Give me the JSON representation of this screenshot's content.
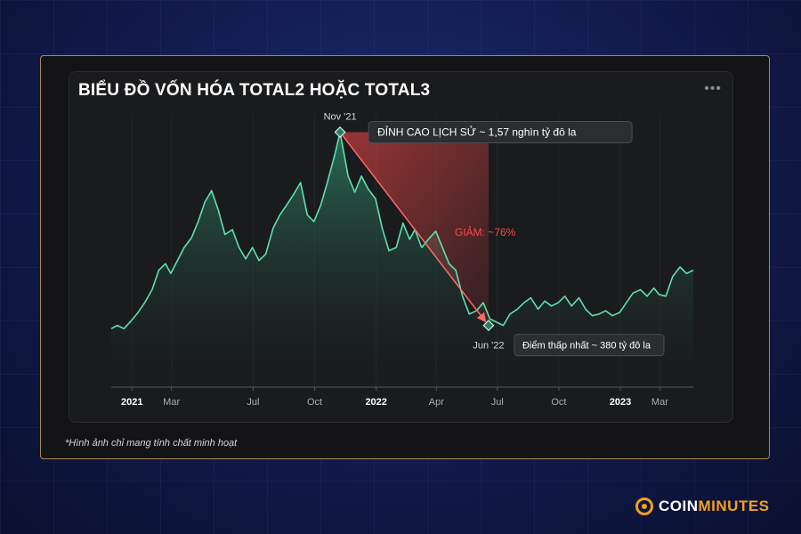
{
  "colors": {
    "line": "#5ee0b0",
    "area_top": "#2f7a62",
    "drop": "#ff5a5a",
    "brand": "#f0a020"
  },
  "card": {
    "title": "BIỂU ĐỒ VỐN HÓA TOTAL2 HOẶC TOTAL3",
    "menu_icon": "more-horizontal-icon"
  },
  "caption": "*Hình ảnh chỉ mang tính chất minh hoạt",
  "logo": {
    "part1": "COIN",
    "part2": "MINUTES",
    "icon": "coin-logo-icon"
  },
  "chart_data": {
    "type": "area",
    "title": "BIỂU ĐỒ VỐN HÓA TOTAL2 HOẶC TOTAL3",
    "xlabel": "",
    "ylabel": "",
    "grid": true,
    "x_ticks": [
      {
        "date": "2021-01-01",
        "label": "2021",
        "bold": true
      },
      {
        "date": "2021-03-01",
        "label": "Mar",
        "bold": false
      },
      {
        "date": "2021-07-01",
        "label": "Jul",
        "bold": false
      },
      {
        "date": "2021-10-01",
        "label": "Oct",
        "bold": false
      },
      {
        "date": "2022-01-01",
        "label": "2022",
        "bold": true
      },
      {
        "date": "2022-04-01",
        "label": "Apr",
        "bold": false
      },
      {
        "date": "2022-07-01",
        "label": "Jul",
        "bold": false
      },
      {
        "date": "2022-10-01",
        "label": "Oct",
        "bold": false
      },
      {
        "date": "2023-01-01",
        "label": "2023",
        "bold": true
      },
      {
        "date": "2023-03-01",
        "label": "Mar",
        "bold": false
      }
    ],
    "x_range": [
      "2020-12-01",
      "2023-04-20"
    ],
    "y_range": [
      0,
      1.6
    ],
    "units": "nghìn tỷ đô la",
    "series": [
      {
        "points": [
          [
            "2020-12-01",
            0.36
          ],
          [
            "2020-12-10",
            0.38
          ],
          [
            "2020-12-20",
            0.36
          ],
          [
            "2020-12-31",
            0.41
          ],
          [
            "2021-01-10",
            0.46
          ],
          [
            "2021-01-20",
            0.52
          ],
          [
            "2021-01-31",
            0.6
          ],
          [
            "2021-02-10",
            0.72
          ],
          [
            "2021-02-20",
            0.76
          ],
          [
            "2021-02-28",
            0.7
          ],
          [
            "2021-03-10",
            0.78
          ],
          [
            "2021-03-20",
            0.86
          ],
          [
            "2021-03-31",
            0.92
          ],
          [
            "2021-04-10",
            1.02
          ],
          [
            "2021-04-20",
            1.14
          ],
          [
            "2021-04-30",
            1.21
          ],
          [
            "2021-05-10",
            1.09
          ],
          [
            "2021-05-20",
            0.94
          ],
          [
            "2021-05-31",
            0.97
          ],
          [
            "2021-06-10",
            0.86
          ],
          [
            "2021-06-20",
            0.79
          ],
          [
            "2021-06-30",
            0.86
          ],
          [
            "2021-07-10",
            0.78
          ],
          [
            "2021-07-20",
            0.82
          ],
          [
            "2021-07-31",
            0.98
          ],
          [
            "2021-08-10",
            1.06
          ],
          [
            "2021-08-20",
            1.12
          ],
          [
            "2021-08-31",
            1.19
          ],
          [
            "2021-09-10",
            1.26
          ],
          [
            "2021-09-20",
            1.06
          ],
          [
            "2021-09-30",
            1.02
          ],
          [
            "2021-10-10",
            1.12
          ],
          [
            "2021-10-20",
            1.26
          ],
          [
            "2021-10-31",
            1.43
          ],
          [
            "2021-11-08",
            1.57
          ],
          [
            "2021-11-20",
            1.3
          ],
          [
            "2021-11-30",
            1.2
          ],
          [
            "2021-12-10",
            1.3
          ],
          [
            "2021-12-20",
            1.22
          ],
          [
            "2021-12-31",
            1.16
          ],
          [
            "2022-01-10",
            0.98
          ],
          [
            "2022-01-20",
            0.84
          ],
          [
            "2022-01-31",
            0.86
          ],
          [
            "2022-02-10",
            1.01
          ],
          [
            "2022-02-20",
            0.91
          ],
          [
            "2022-02-28",
            0.97
          ],
          [
            "2022-03-10",
            0.86
          ],
          [
            "2022-03-20",
            0.91
          ],
          [
            "2022-03-31",
            0.96
          ],
          [
            "2022-04-10",
            0.86
          ],
          [
            "2022-04-20",
            0.76
          ],
          [
            "2022-04-30",
            0.72
          ],
          [
            "2022-05-10",
            0.56
          ],
          [
            "2022-05-20",
            0.45
          ],
          [
            "2022-05-31",
            0.47
          ],
          [
            "2022-06-10",
            0.52
          ],
          [
            "2022-06-20",
            0.42
          ],
          [
            "2022-06-30",
            0.4
          ],
          [
            "2022-07-10",
            0.38
          ],
          [
            "2022-07-20",
            0.45
          ],
          [
            "2022-07-31",
            0.48
          ],
          [
            "2022-08-10",
            0.52
          ],
          [
            "2022-08-20",
            0.55
          ],
          [
            "2022-08-31",
            0.48
          ],
          [
            "2022-09-10",
            0.53
          ],
          [
            "2022-09-20",
            0.5
          ],
          [
            "2022-09-30",
            0.52
          ],
          [
            "2022-10-10",
            0.56
          ],
          [
            "2022-10-20",
            0.5
          ],
          [
            "2022-10-31",
            0.55
          ],
          [
            "2022-11-10",
            0.48
          ],
          [
            "2022-11-20",
            0.44
          ],
          [
            "2022-11-30",
            0.45
          ],
          [
            "2022-12-10",
            0.47
          ],
          [
            "2022-12-20",
            0.44
          ],
          [
            "2022-12-31",
            0.46
          ],
          [
            "2023-01-10",
            0.52
          ],
          [
            "2023-01-20",
            0.58
          ],
          [
            "2023-01-31",
            0.6
          ],
          [
            "2023-02-10",
            0.56
          ],
          [
            "2023-02-20",
            0.61
          ],
          [
            "2023-02-28",
            0.57
          ],
          [
            "2023-03-10",
            0.56
          ],
          [
            "2023-03-20",
            0.68
          ],
          [
            "2023-03-31",
            0.74
          ],
          [
            "2023-04-10",
            0.7
          ],
          [
            "2023-04-20",
            0.72
          ]
        ]
      }
    ],
    "annotations": {
      "peak": {
        "date": "2021-11-08",
        "value": 1.57,
        "date_label": "Nov '21",
        "text": "ĐỈNH CAO LỊCH SỬ ~ 1,57 nghìn tỷ đô la"
      },
      "trough": {
        "date": "2022-06-18",
        "value": 0.38,
        "date_label": "Jun '22",
        "text": "Điểm thấp nhất ~ 380 tỷ đô la"
      },
      "drop": {
        "text": "GIẢM: ~76%"
      }
    }
  }
}
